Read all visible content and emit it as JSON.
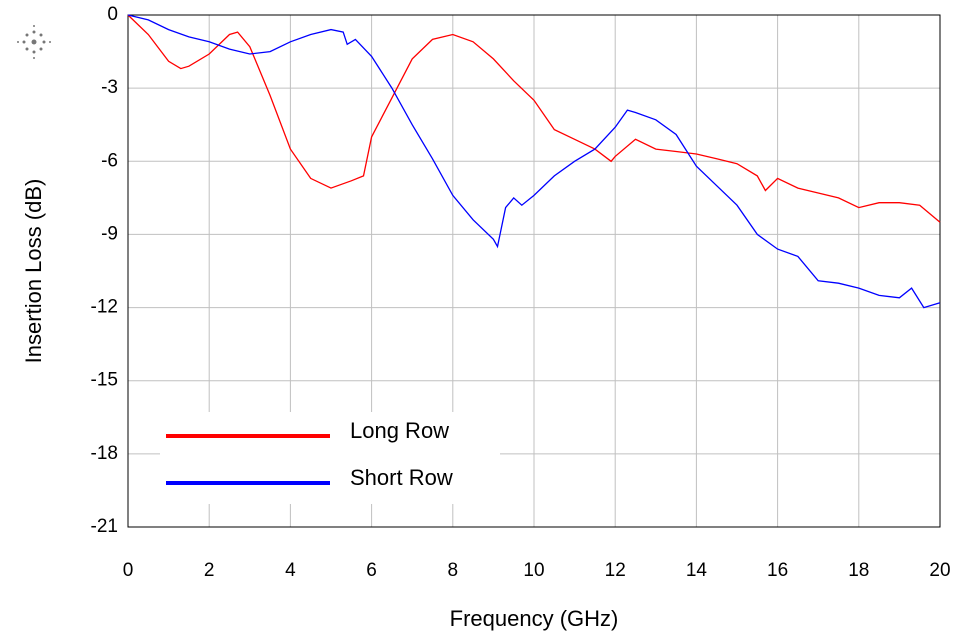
{
  "chart_data": {
    "type": "line",
    "xlabel": "Frequency (GHz)",
    "ylabel": "Insertion Loss (dB)",
    "xlim": [
      0,
      20
    ],
    "xticks": [
      0,
      2,
      4,
      6,
      8,
      10,
      12,
      14,
      16,
      18,
      20
    ],
    "ylim": [
      -21,
      0
    ],
    "yticks": [
      0,
      -3,
      -6,
      -9,
      -12,
      -15,
      -18,
      -21
    ],
    "grid": true,
    "legend": "lower left",
    "series": [
      {
        "name": "Long Row",
        "color": "#ff0000",
        "x": [
          0,
          0.5,
          1,
          1.3,
          1.5,
          2,
          2.5,
          2.7,
          3,
          3.5,
          4,
          4.5,
          5,
          5.5,
          5.8,
          6,
          6.5,
          7,
          7.5,
          8,
          8.5,
          9,
          9.5,
          10,
          10.5,
          11,
          11.5,
          11.9,
          12,
          12.5,
          13,
          13.5,
          14,
          14.5,
          15,
          15.5,
          15.7,
          16,
          16.5,
          17,
          17.5,
          18,
          18.5,
          19,
          19.5,
          20
        ],
        "values": [
          0,
          -0.8,
          -1.9,
          -2.2,
          -2.1,
          -1.6,
          -0.8,
          -0.7,
          -1.3,
          -3.3,
          -5.5,
          -6.7,
          -7.1,
          -6.8,
          -6.6,
          -5.0,
          -3.4,
          -1.8,
          -1.0,
          -0.8,
          -1.1,
          -1.8,
          -2.7,
          -3.5,
          -4.7,
          -5.1,
          -5.5,
          -6.0,
          -5.8,
          -5.1,
          -5.5,
          -5.6,
          -5.7,
          -5.9,
          -6.1,
          -6.6,
          -7.2,
          -6.7,
          -7.1,
          -7.3,
          -7.5,
          -7.9,
          -7.7,
          -7.7,
          -7.8,
          -8.5
        ]
      },
      {
        "name": "Short Row",
        "color": "#0000ff",
        "x": [
          0,
          0.5,
          1,
          1.5,
          2,
          2.5,
          3,
          3.5,
          4,
          4.5,
          5,
          5.3,
          5.4,
          5.6,
          6,
          6.5,
          7,
          7.5,
          8,
          8.5,
          9,
          9.1,
          9.3,
          9.5,
          9.7,
          10,
          10.5,
          11,
          11.5,
          12,
          12.3,
          12.5,
          13,
          13.5,
          14,
          14.5,
          15,
          15.5,
          16,
          16.5,
          17,
          17.5,
          18,
          18.5,
          19,
          19.3,
          19.6,
          20
        ],
        "values": [
          0,
          -0.2,
          -0.6,
          -0.9,
          -1.1,
          -1.4,
          -1.6,
          -1.5,
          -1.1,
          -0.8,
          -0.6,
          -0.7,
          -1.2,
          -1.0,
          -1.7,
          -3.0,
          -4.5,
          -5.9,
          -7.4,
          -8.4,
          -9.2,
          -9.5,
          -7.9,
          -7.5,
          -7.8,
          -7.4,
          -6.6,
          -6.0,
          -5.5,
          -4.6,
          -3.9,
          -4.0,
          -4.3,
          -4.9,
          -6.2,
          -7.0,
          -7.8,
          -9.0,
          -9.6,
          -9.9,
          -10.9,
          -11.0,
          -11.2,
          -11.5,
          -11.6,
          -11.2,
          -12.0,
          -11.8
        ]
      }
    ]
  }
}
